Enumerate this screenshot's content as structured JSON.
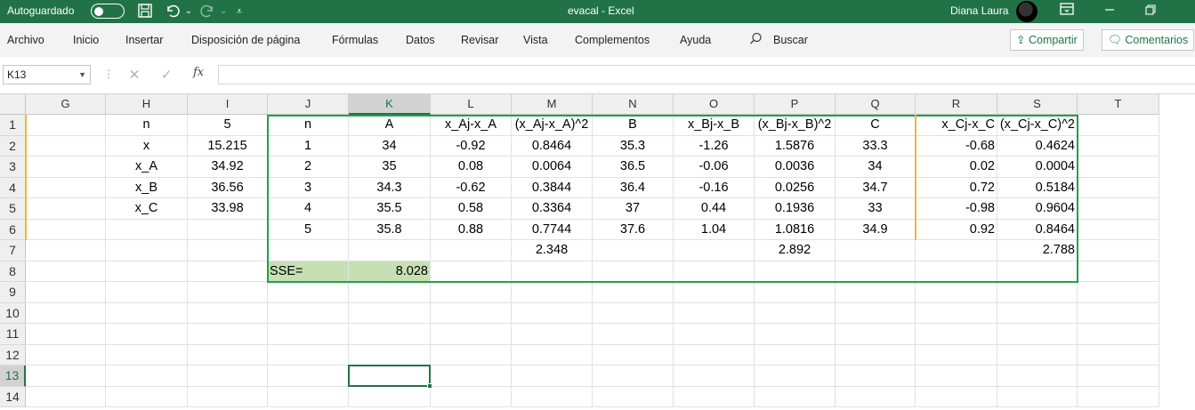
{
  "titlebar": {
    "autosave_label": "Autoguardado",
    "doc_title": "evacal  -  Excel",
    "user_name": "Diana Laura",
    "icons": [
      "save-icon",
      "undo-icon",
      "redo-icon",
      "customize-icon",
      "ribbon-display-icon",
      "minimize-icon",
      "restore-icon"
    ]
  },
  "ribbon": {
    "tabs": [
      "Archivo",
      "Inicio",
      "Insertar",
      "Disposición de página",
      "Fórmulas",
      "Datos",
      "Revisar",
      "Vista",
      "Complementos",
      "Ayuda"
    ],
    "search": "Buscar",
    "share": "Compartir",
    "comments": "Comentarios"
  },
  "formula_bar": {
    "name_box": "K13",
    "fx": "fx",
    "formula": ""
  },
  "columns": [
    "G",
    "H",
    "I",
    "J",
    "K",
    "L",
    "M",
    "N",
    "O",
    "P",
    "Q",
    "R",
    "S",
    "T"
  ],
  "rows": [
    "1",
    "2",
    "3",
    "4",
    "5",
    "6",
    "7",
    "8",
    "9",
    "10",
    "11",
    "12",
    "13",
    "14"
  ],
  "selected_col": "K",
  "selected_row": "13",
  "cells": {
    "H1": "n",
    "I1": "5",
    "H2": "x",
    "I2": "15.215",
    "H3": "x_A",
    "I3": "34.92",
    "H4": "x_B",
    "I4": "36.56",
    "H5": "x_C",
    "I5": "33.98",
    "J1": "n",
    "K1": "A",
    "L1": "x_Aj-x_A",
    "M1": "(x_Aj-x_A)^2",
    "N1": "B",
    "O1": "x_Bj-x_B",
    "P1": "(x_Bj-x_B)^2",
    "Q1": "C",
    "R1": "x_Cj-x_C",
    "S1": "(x_Cj-x_C)^2",
    "J2": "1",
    "K2": "34",
    "L2": "-0.92",
    "M2": "0.8464",
    "N2": "35.3",
    "O2": "-1.26",
    "P2": "1.5876",
    "Q2": "33.3",
    "R2": "-0.68",
    "S2": "0.4624",
    "J3": "2",
    "K3": "35",
    "L3": "0.08",
    "M3": "0.0064",
    "N3": "36.5",
    "O3": "-0.06",
    "P3": "0.0036",
    "Q3": "34",
    "R3": "0.02",
    "S3": "0.0004",
    "J4": "3",
    "K4": "34.3",
    "L4": "-0.62",
    "M4": "0.3844",
    "N4": "36.4",
    "O4": "-0.16",
    "P4": "0.0256",
    "Q4": "34.7",
    "R4": "0.72",
    "S4": "0.5184",
    "J5": "4",
    "K5": "35.5",
    "L5": "0.58",
    "M5": "0.3364",
    "N5": "37",
    "O5": "0.44",
    "P5": "0.1936",
    "Q5": "33",
    "R5": "-0.98",
    "S5": "0.9604",
    "J6": "5",
    "K6": "35.8",
    "L6": "0.88",
    "M6": "0.7744",
    "N6": "37.6",
    "O6": "1.04",
    "P6": "1.0816",
    "Q6": "34.9",
    "R6": "0.92",
    "S6": "0.8464",
    "M7": "2.348",
    "P7": "2.892",
    "S7": "2.788",
    "J8": "SSE=",
    "K8": "8.028"
  }
}
